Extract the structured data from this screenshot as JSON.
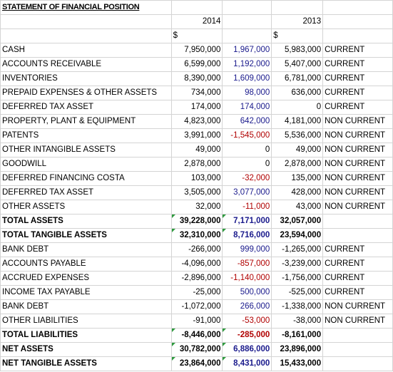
{
  "sheet": {
    "title": "STATEMENT OF FINANCIAL POSITION",
    "year_current": "2014",
    "year_prior": "2013",
    "currency_current": "$",
    "currency_prior": "$"
  },
  "rows": [
    {
      "label": "CASH",
      "v2014": "7,950,000",
      "change": "1,967,000",
      "v2013": "5,983,000",
      "class": "CURRENT",
      "change_color": "blue",
      "bold": false,
      "flag": false
    },
    {
      "label": "ACCOUNTS RECEIVABLE",
      "v2014": "6,599,000",
      "change": "1,192,000",
      "v2013": "5,407,000",
      "class": "CURRENT",
      "change_color": "blue",
      "bold": false,
      "flag": false
    },
    {
      "label": "INVENTORIES",
      "v2014": "8,390,000",
      "change": "1,609,000",
      "v2013": "6,781,000",
      "class": "CURRENT",
      "change_color": "blue",
      "bold": false,
      "flag": false
    },
    {
      "label": "PREPAID EXPENSES & OTHER ASSETS",
      "v2014": "734,000",
      "change": "98,000",
      "v2013": "636,000",
      "class": "CURRENT",
      "change_color": "blue",
      "bold": false,
      "flag": false
    },
    {
      "label": "DEFERRED TAX ASSET",
      "v2014": "174,000",
      "change": "174,000",
      "v2013": "0",
      "class": "CURRENT",
      "change_color": "blue",
      "bold": false,
      "flag": false
    },
    {
      "label": "PROPERTY, PLANT & EQUIPMENT",
      "v2014": "4,823,000",
      "change": "642,000",
      "v2013": "4,181,000",
      "class": "NON CURRENT",
      "change_color": "blue",
      "bold": false,
      "flag": false
    },
    {
      "label": "PATENTS",
      "v2014": "3,991,000",
      "change": "-1,545,000",
      "v2013": "5,536,000",
      "class": "NON CURRENT",
      "change_color": "red",
      "bold": false,
      "flag": false
    },
    {
      "label": "OTHER INTANGIBLE ASSETS",
      "v2014": "49,000",
      "change": "0",
      "v2013": "49,000",
      "class": "NON CURRENT",
      "change_color": "black",
      "bold": false,
      "flag": false
    },
    {
      "label": "GOODWILL",
      "v2014": "2,878,000",
      "change": "0",
      "v2013": "2,878,000",
      "class": "NON CURRENT",
      "change_color": "black",
      "bold": false,
      "flag": false
    },
    {
      "label": "DEFERRED FINANCING COSTA",
      "v2014": "103,000",
      "change": "-32,000",
      "v2013": "135,000",
      "class": "NON CURRENT",
      "change_color": "red",
      "bold": false,
      "flag": false
    },
    {
      "label": "DEFERRED TAX ASSET",
      "v2014": "3,505,000",
      "change": "3,077,000",
      "v2013": "428,000",
      "class": "NON CURRENT",
      "change_color": "blue",
      "bold": false,
      "flag": false
    },
    {
      "label": "OTHER ASSETS",
      "v2014": "32,000",
      "change": "-11,000",
      "v2013": "43,000",
      "class": "NON CURRENT",
      "change_color": "red",
      "bold": false,
      "flag": false
    },
    {
      "label": "TOTAL ASSETS",
      "v2014": "39,228,000",
      "change": "7,171,000",
      "v2013": "32,057,000",
      "class": "",
      "change_color": "blue",
      "bold": true,
      "flag": true
    },
    {
      "label": "TOTAL TANGIBLE ASSETS",
      "v2014": "32,310,000",
      "change": "8,716,000",
      "v2013": "23,594,000",
      "class": "",
      "change_color": "blue",
      "bold": true,
      "flag": true
    },
    {
      "label": "BANK DEBT",
      "v2014": "-266,000",
      "change": "999,000",
      "v2013": "-1,265,000",
      "class": "CURRENT",
      "change_color": "blue",
      "bold": false,
      "flag": false
    },
    {
      "label": "ACCOUNTS PAYABLE",
      "v2014": "-4,096,000",
      "change": "-857,000",
      "v2013": "-3,239,000",
      "class": "CURRENT",
      "change_color": "red",
      "bold": false,
      "flag": false
    },
    {
      "label": "ACCRUED EXPENSES",
      "v2014": "-2,896,000",
      "change": "-1,140,000",
      "v2013": "-1,756,000",
      "class": "CURRENT",
      "change_color": "red",
      "bold": false,
      "flag": false
    },
    {
      "label": "INCOME TAX PAYABLE",
      "v2014": "-25,000",
      "change": "500,000",
      "v2013": "-525,000",
      "class": "CURRENT",
      "change_color": "blue",
      "bold": false,
      "flag": false
    },
    {
      "label": "BANK DEBT",
      "v2014": "-1,072,000",
      "change": "266,000",
      "v2013": "-1,338,000",
      "class": "NON CURRENT",
      "change_color": "blue",
      "bold": false,
      "flag": false
    },
    {
      "label": "OTHER LIABILITIES",
      "v2014": "-91,000",
      "change": "-53,000",
      "v2013": "-38,000",
      "class": "NON CURRENT",
      "change_color": "red",
      "bold": false,
      "flag": false
    },
    {
      "label": "TOTAL LIABILITIES",
      "v2014": "-8,446,000",
      "change": "-285,000",
      "v2013": "-8,161,000",
      "class": "",
      "change_color": "red",
      "bold": true,
      "flag": true
    },
    {
      "label": "NET ASSETS",
      "v2014": "30,782,000",
      "change": "6,886,000",
      "v2013": "23,896,000",
      "class": "",
      "change_color": "blue",
      "bold": true,
      "flag": true
    },
    {
      "label": "NET TANGIBLE ASSETS",
      "v2014": "23,864,000",
      "change": "8,431,000",
      "v2013": "15,433,000",
      "class": "",
      "change_color": "blue",
      "bold": true,
      "flag": true
    }
  ]
}
